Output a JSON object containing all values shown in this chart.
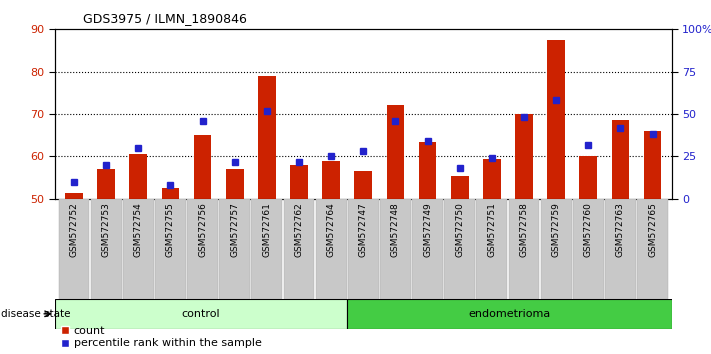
{
  "title": "GDS3975 / ILMN_1890846",
  "samples": [
    "GSM572752",
    "GSM572753",
    "GSM572754",
    "GSM572755",
    "GSM572756",
    "GSM572757",
    "GSM572761",
    "GSM572762",
    "GSM572764",
    "GSM572747",
    "GSM572748",
    "GSM572749",
    "GSM572750",
    "GSM572751",
    "GSM572758",
    "GSM572759",
    "GSM572760",
    "GSM572763",
    "GSM572765"
  ],
  "count_values": [
    51.5,
    57.0,
    60.5,
    52.5,
    65.0,
    57.0,
    79.0,
    58.0,
    59.0,
    56.5,
    72.0,
    63.5,
    55.5,
    59.5,
    70.0,
    87.5,
    60.0,
    68.5,
    66.0
  ],
  "percentile_values": [
    10,
    20,
    30,
    8,
    46,
    22,
    52,
    22,
    25,
    28,
    46,
    34,
    18,
    24,
    48,
    58,
    32,
    42,
    38
  ],
  "control_count": 9,
  "ylim_left": [
    50,
    90
  ],
  "ylim_right": [
    0,
    100
  ],
  "yticks_left": [
    50,
    60,
    70,
    80,
    90
  ],
  "yticks_right": [
    0,
    25,
    50,
    75,
    100
  ],
  "bar_color": "#cc2200",
  "point_color": "#2222cc",
  "control_color": "#ccffcc",
  "endo_color": "#44cc44",
  "xtick_bg": "#c8c8c8",
  "label_color_left": "#cc2200",
  "label_color_right": "#2222cc",
  "legend_count": "count",
  "legend_pct": "percentile rank within the sample",
  "disease_label": "disease state",
  "control_label": "control",
  "endo_label": "endometrioma"
}
